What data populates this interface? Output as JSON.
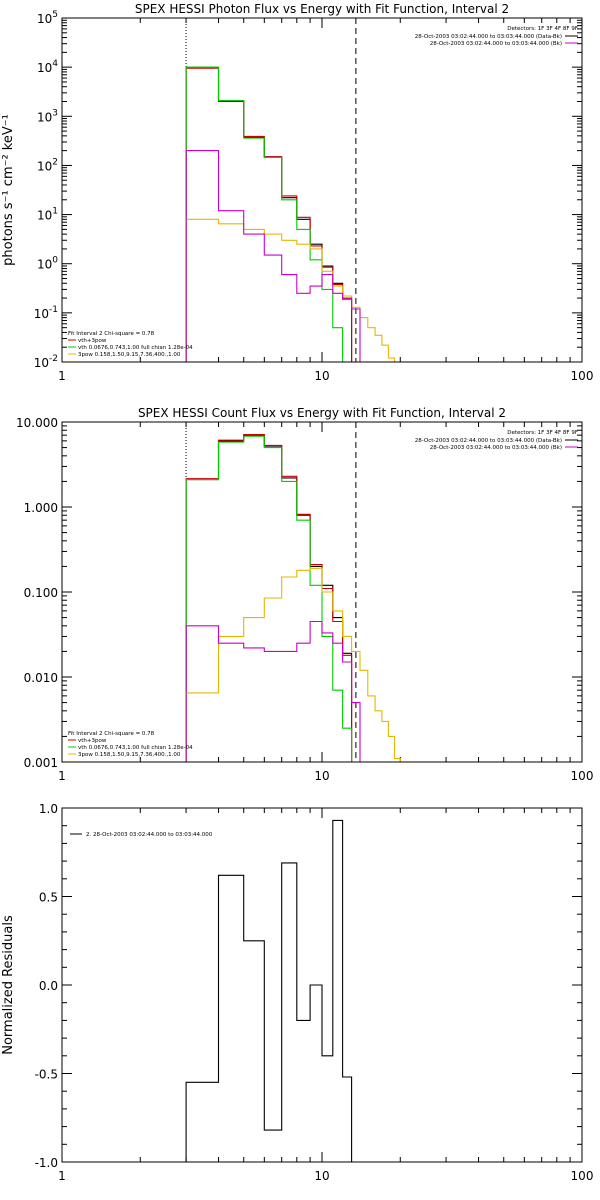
{
  "chart_data": [
    {
      "id": "photon",
      "type": "line",
      "title": "SPEX HESSI Photon Flux vs Energy with Fit Function, Interval 2",
      "ylabel": "photons s⁻¹ cm⁻² keV⁻¹",
      "xlabel": "",
      "xscale": "log",
      "yscale": "log",
      "xlim": [
        1,
        100
      ],
      "ylim": [
        0.01,
        100000
      ],
      "xticks": [
        {
          "v": 1,
          "label": "1"
        },
        {
          "v": 10,
          "label": "10"
        },
        {
          "v": 100,
          "label": "100"
        }
      ],
      "yticks": [
        {
          "v": 0.01,
          "base": "10",
          "exp": "-2"
        },
        {
          "v": 0.1,
          "base": "10",
          "exp": "-1"
        },
        {
          "v": 1,
          "base": "10",
          "exp": "0"
        },
        {
          "v": 10,
          "base": "10",
          "exp": "1"
        },
        {
          "v": 100,
          "base": "10",
          "exp": "2"
        },
        {
          "v": 1000,
          "base": "10",
          "exp": "3"
        },
        {
          "v": 10000,
          "base": "10",
          "exp": "4"
        },
        {
          "v": 100000,
          "base": "10",
          "exp": "5"
        }
      ],
      "vlines": [
        {
          "x": 3.0,
          "style": "dotted"
        },
        {
          "x": 13.5,
          "style": "dashed"
        }
      ],
      "detectors": "Detectors: 1F 3F 4F 8F 9F",
      "time_legend": [
        {
          "text": "28-Oct-2003 03:02:44.000 to 03:03:44.000 (Data-Bk)",
          "color": "#000000"
        },
        {
          "text": "28-Oct-2003 03:02:44.000 to 03:03:44.000 (Bk)",
          "color": "#cc00cc"
        }
      ],
      "fit_legend": [
        {
          "text": "Fit Interval 2   Chi-square = 0.78",
          "color": null
        },
        {
          "text": "vth+3pow",
          "color": "#cc0000"
        },
        {
          "text": "vth 0.0676,0.743,1.00  full chian 1.28e-04",
          "color": "#00cc00"
        },
        {
          "text": "3pow 0.158,1.50,9.15,7.36,400.,1.00",
          "color": "#e6b800"
        }
      ],
      "series": [
        {
          "name": "Data-Bk",
          "color": "#000000",
          "edges": [
            3,
            4,
            5,
            6,
            7,
            8,
            9,
            10,
            11,
            12,
            13
          ],
          "values": [
            10000,
            2000,
            380,
            150,
            22,
            8,
            2.5,
            0.9,
            0.4,
            0.2
          ]
        },
        {
          "name": "vth+3pow",
          "color": "#cc0000",
          "edges": [
            3,
            4,
            5,
            6,
            7,
            8,
            9,
            10,
            11,
            12,
            13
          ],
          "values": [
            9500,
            2050,
            390,
            150,
            24,
            8.8,
            2.3,
            0.85,
            0.38,
            0.19
          ]
        },
        {
          "name": "vth",
          "color": "#00cc00",
          "edges": [
            3,
            4,
            5,
            6,
            7,
            8,
            9,
            10,
            11,
            12,
            13
          ],
          "values": [
            10000,
            2100,
            360,
            145,
            20,
            5,
            1.2,
            0.3,
            0.05,
            0.008
          ]
        },
        {
          "name": "3pow",
          "color": "#e6b800",
          "edges": [
            3,
            4,
            5,
            6,
            7,
            8,
            9,
            10,
            11,
            12,
            13,
            14,
            15,
            16,
            17,
            18,
            19
          ],
          "values": [
            8,
            6.5,
            5,
            4,
            3,
            2.5,
            2,
            0.7,
            0.35,
            0.22,
            0.13,
            0.08,
            0.05,
            0.035,
            0.022,
            0.012
          ]
        },
        {
          "name": "Bk",
          "color": "#cc00cc",
          "edges": [
            3,
            4,
            5,
            6,
            7,
            8,
            9,
            10,
            11,
            12,
            13,
            14
          ],
          "values": [
            200,
            12,
            4,
            1.5,
            0.6,
            0.25,
            0.35,
            0.6,
            0.25,
            0.2,
            0.12
          ]
        }
      ]
    },
    {
      "id": "count",
      "type": "line",
      "title": "SPEX HESSI Count Flux vs Energy with Fit Function, Interval 2",
      "ylabel": "",
      "xlabel": "",
      "xscale": "log",
      "yscale": "log",
      "xlim": [
        1,
        100
      ],
      "ylim": [
        0.001,
        10
      ],
      "xticks": [
        {
          "v": 1,
          "label": "1"
        },
        {
          "v": 10,
          "label": "10"
        },
        {
          "v": 100,
          "label": "100"
        }
      ],
      "yticks": [
        {
          "v": 0.001,
          "label": "0.001"
        },
        {
          "v": 0.01,
          "label": "0.010"
        },
        {
          "v": 0.1,
          "label": "0.100"
        },
        {
          "v": 1,
          "label": "1.000"
        },
        {
          "v": 10,
          "label": "10.000"
        }
      ],
      "vlines": [
        {
          "x": 3.0,
          "style": "dotted"
        },
        {
          "x": 13.5,
          "style": "dashed"
        }
      ],
      "detectors": "Detectors: 1F 3F 4F 8F 9F",
      "time_legend": [
        {
          "text": "28-Oct-2003 03:02:44.000 to 03:03:44.000 (Data-Bk)",
          "color": "#000000"
        },
        {
          "text": "28-Oct-2003 03:02:44.000 to 03:03:44.000 (Bk)",
          "color": "#cc00cc"
        }
      ],
      "fit_legend": [
        {
          "text": "Fit Interval 2   Chi-square = 0.78",
          "color": null
        },
        {
          "text": "vth+3pow",
          "color": "#cc0000"
        },
        {
          "text": "vth 0.0676,0.743,1.00  full chian 1.28e-04",
          "color": "#00cc00"
        },
        {
          "text": "3pow 0.158,1.50,9.15,7.36,400.,1.00",
          "color": "#e6b800"
        }
      ],
      "series": [
        {
          "name": "Data-Bk",
          "color": "#000000",
          "edges": [
            3,
            4,
            5,
            6,
            7,
            8,
            9,
            10,
            11,
            12,
            13
          ],
          "values": [
            2.1,
            6.0,
            7.0,
            5.2,
            2.2,
            0.8,
            0.2,
            0.12,
            0.05,
            0.019
          ]
        },
        {
          "name": "vth+3pow",
          "color": "#cc0000",
          "edges": [
            3,
            4,
            5,
            6,
            7,
            8,
            9,
            10,
            11,
            12,
            13
          ],
          "values": [
            2.15,
            6.1,
            7.1,
            5.3,
            2.3,
            0.82,
            0.21,
            0.11,
            0.045,
            0.018
          ]
        },
        {
          "name": "vth",
          "color": "#00cc00",
          "edges": [
            3,
            4,
            5,
            6,
            7,
            8,
            9,
            10,
            11,
            12,
            13
          ],
          "values": [
            2.1,
            5.8,
            6.8,
            5.0,
            2.0,
            0.7,
            0.12,
            0.03,
            0.007,
            0.0025
          ]
        },
        {
          "name": "3pow",
          "color": "#e6b800",
          "edges": [
            3,
            4,
            5,
            6,
            7,
            8,
            9,
            10,
            11,
            12,
            13,
            14,
            15,
            16,
            17,
            18,
            19,
            20
          ],
          "values": [
            0.0065,
            0.03,
            0.05,
            0.085,
            0.15,
            0.18,
            0.19,
            0.1,
            0.06,
            0.03,
            0.02,
            0.012,
            0.006,
            0.004,
            0.003,
            0.002,
            0.0011
          ]
        },
        {
          "name": "Bk",
          "color": "#cc00cc",
          "edges": [
            3,
            4,
            5,
            6,
            7,
            8,
            9,
            10,
            11,
            12,
            13,
            14
          ],
          "values": [
            0.04,
            0.025,
            0.022,
            0.02,
            0.02,
            0.025,
            0.045,
            0.033,
            0.025,
            0.015,
            0.005
          ]
        }
      ]
    },
    {
      "id": "residuals",
      "type": "line",
      "title": "",
      "ylabel": "Normalized Residuals",
      "xlabel": "",
      "xscale": "log",
      "yscale": "linear",
      "xlim": [
        1,
        100
      ],
      "ylim": [
        -1.0,
        1.0
      ],
      "xticks": [
        {
          "v": 1,
          "label": "1"
        },
        {
          "v": 10,
          "label": "10"
        },
        {
          "v": 100,
          "label": "100"
        }
      ],
      "yticks": [
        {
          "v": 1.0,
          "label": "1.0"
        },
        {
          "v": 0.5,
          "label": "0.5"
        },
        {
          "v": 0.0,
          "label": "0.0"
        },
        {
          "v": -0.5,
          "label": "-0.5"
        },
        {
          "v": -1.0,
          "label": "-1.0"
        }
      ],
      "vlines": [],
      "legend": [
        {
          "text": "2. 28-Oct-2003 03:02:44.000 to 03:03:44.000",
          "color": "#000000"
        }
      ],
      "series": [
        {
          "name": "",
          "color": "#000000",
          "edges": [
            3,
            4,
            5,
            6,
            7,
            8,
            9,
            10,
            11,
            12,
            13
          ],
          "values": [
            -0.55,
            0.62,
            0.25,
            -0.82,
            0.69,
            -0.2,
            0.0,
            -0.4,
            0.93,
            -0.52
          ]
        }
      ]
    }
  ]
}
